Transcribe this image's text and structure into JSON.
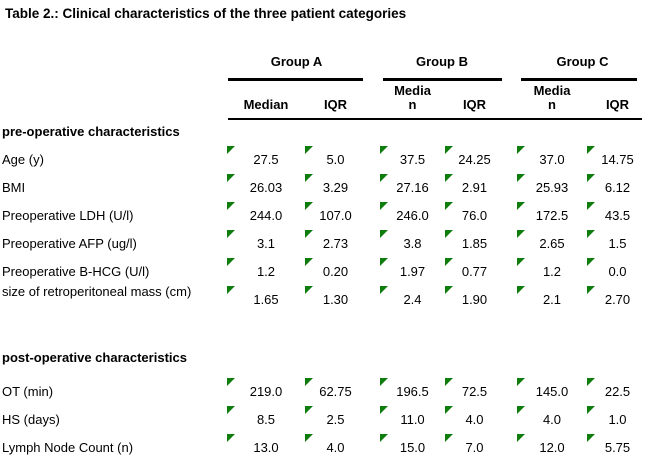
{
  "title": "Table 2.: Clinical characteristics of the three patient categories",
  "colors": {
    "background": "#ffffff",
    "text": "#000000",
    "flag_triangle": "#0e7d0e",
    "rule": "#000000"
  },
  "table": {
    "groups": [
      {
        "label": "Group A"
      },
      {
        "label": "Group B"
      },
      {
        "label": "Group C"
      }
    ],
    "subheaders": {
      "median": "Median",
      "iqr": "IQR"
    },
    "sections": [
      {
        "label": "pre-operative characteristics",
        "rows": [
          {
            "label": "Age (y)",
            "values": [
              "27.5",
              "5.0",
              "37.5",
              "24.25",
              "37.0",
              "14.75"
            ]
          },
          {
            "label": "BMI",
            "values": [
              "26.03",
              "3.29",
              "27.16",
              "2.91",
              "25.93",
              "6.12"
            ]
          },
          {
            "label": "Preoperative LDH (U/l)",
            "values": [
              "244.0",
              "107.0",
              "246.0",
              "76.0",
              "172.5",
              "43.5"
            ]
          },
          {
            "label": "Preoperative AFP (ug/l)",
            "values": [
              "3.1",
              "2.73",
              "3.8",
              "1.85",
              "2.65",
              "1.5"
            ]
          },
          {
            "label": "Preoperative B-HCG (U/l)",
            "values": [
              "1.2",
              "0.20",
              "1.97",
              "0.77",
              "1.2",
              "0.0"
            ]
          },
          {
            "label": "size of retroperitoneal mass (cm)",
            "values": [
              "1.65",
              "1.30",
              "2.4",
              "1.90",
              "2.1",
              "2.70"
            ]
          }
        ]
      },
      {
        "label": "post-operative characteristics",
        "rows": [
          {
            "label": "OT (min)",
            "values": [
              "219.0",
              "62.75",
              "196.5",
              "72.5",
              "145.0",
              "22.5"
            ]
          },
          {
            "label": "HS (days)",
            "values": [
              "8.5",
              "2.5",
              "11.0",
              "4.0",
              "4.0",
              "1.0"
            ]
          },
          {
            "label": "Lymph Node Count (n)",
            "values": [
              "13.0",
              "4.0",
              "15.0",
              "7.0",
              "12.0",
              "5.75"
            ]
          }
        ]
      }
    ]
  }
}
